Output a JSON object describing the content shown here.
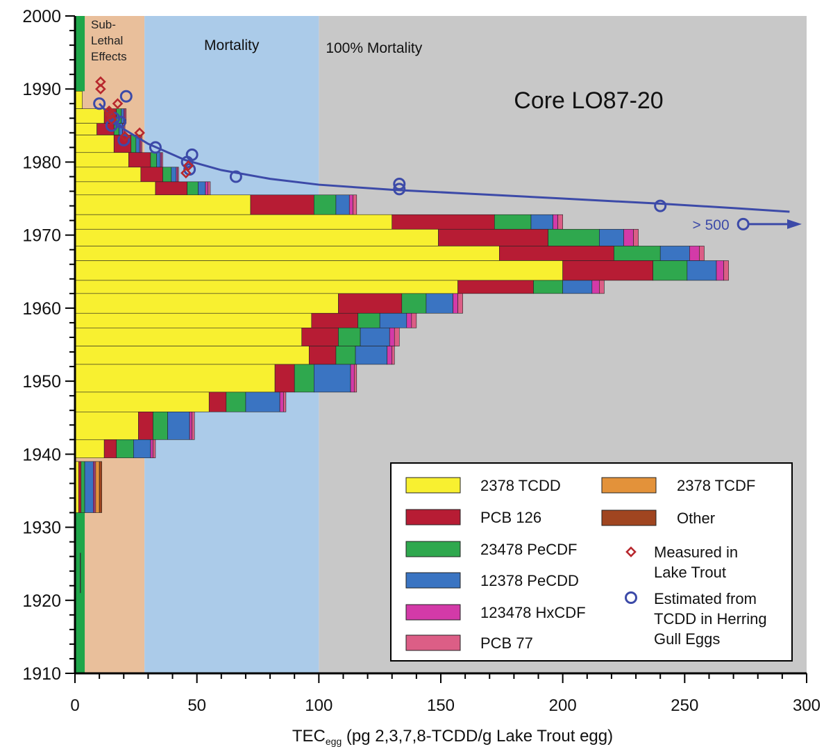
{
  "chart_data": {
    "type": "bar",
    "orientation": "horizontal-stacked",
    "title": "Core LO87-20",
    "xlabel_main": "TEC",
    "xlabel_sub": "egg",
    "xlabel_rest": " (pg 2,3,7,8-TCDD/g Lake Trout egg)",
    "xlim": [
      0,
      300
    ],
    "ylim": [
      1910,
      2000
    ],
    "xticks": [
      0,
      50,
      100,
      150,
      200,
      250,
      300
    ],
    "yticks": [
      1910,
      1920,
      1930,
      1940,
      1950,
      1960,
      1970,
      1980,
      1990,
      2000
    ],
    "xtick_labels": [
      "0",
      "50",
      "100",
      "150",
      "200",
      "250",
      "300"
    ],
    "ytick_labels": [
      "1910",
      "1920",
      "1930",
      "1940",
      "1950",
      "1960",
      "1970",
      "1980",
      "1990",
      "2000"
    ],
    "zones": [
      {
        "label_lines": [
          "Sub-",
          "Lethal",
          "Effects"
        ],
        "from": 0,
        "to": 28.5,
        "color": "#e9bf9b"
      },
      {
        "label_lines": [
          "Mortality"
        ],
        "from": 28.5,
        "to": 100,
        "color": "#abcbe9"
      },
      {
        "label_lines": [
          "100% Mortality"
        ],
        "from": 100,
        "to": 300,
        "color": "#c8c8c8"
      }
    ],
    "series": [
      {
        "name": "2378 TCDD",
        "color": "#f8f030"
      },
      {
        "name": "PCB 126",
        "color": "#b71c34"
      },
      {
        "name": "23478 PeCDF",
        "color": "#2fa84e"
      },
      {
        "name": "12378 PeCDD",
        "color": "#3a74c2"
      },
      {
        "name": "123478 HxCDF",
        "color": "#d33aa8"
      },
      {
        "name": "PCB 77",
        "color": "#dc5e86"
      },
      {
        "name": "2378 TCDF",
        "color": "#e3923a"
      },
      {
        "name": "Other",
        "color": "#a04520"
      }
    ],
    "legend_position": "lower-right",
    "bars": [
      {
        "y0": 1987.3,
        "y1": 1989.7,
        "values": [
          3,
          0,
          0,
          0,
          0,
          0,
          0,
          0
        ]
      },
      {
        "y0": 1985.3,
        "y1": 1987.3,
        "values": [
          12,
          5,
          2,
          1,
          0.5,
          0.5,
          0,
          0
        ]
      },
      {
        "y0": 1983.7,
        "y1": 1985.3,
        "values": [
          9,
          7,
          2,
          1.5,
          0.5,
          0.5,
          0,
          0
        ]
      },
      {
        "y0": 1981.3,
        "y1": 1983.7,
        "values": [
          16,
          7,
          2,
          1.5,
          0.5,
          0.5,
          0,
          0
        ]
      },
      {
        "y0": 1979.3,
        "y1": 1981.3,
        "values": [
          22,
          9,
          2.5,
          1.5,
          0.5,
          0.5,
          0,
          0
        ]
      },
      {
        "y0": 1977.3,
        "y1": 1979.3,
        "values": [
          27,
          9,
          3.5,
          2,
          0.5,
          0.5,
          0,
          0
        ]
      },
      {
        "y0": 1975.5,
        "y1": 1977.3,
        "values": [
          33,
          13,
          4.5,
          3,
          1,
          1,
          0,
          0
        ]
      },
      {
        "y0": 1972.8,
        "y1": 1975.5,
        "values": [
          72,
          26,
          9,
          5.5,
          1.5,
          1.5,
          0,
          0
        ]
      },
      {
        "y0": 1970.8,
        "y1": 1972.8,
        "values": [
          130,
          42,
          15,
          9,
          2,
          2,
          0,
          0
        ]
      },
      {
        "y0": 1968.5,
        "y1": 1970.8,
        "values": [
          149,
          45,
          21,
          10,
          4,
          2,
          0,
          0
        ]
      },
      {
        "y0": 1966.5,
        "y1": 1968.5,
        "values": [
          174,
          47,
          19,
          12,
          4,
          2,
          0,
          0
        ]
      },
      {
        "y0": 1963.8,
        "y1": 1966.5,
        "values": [
          200,
          37,
          14,
          12,
          3,
          2,
          0,
          0
        ]
      },
      {
        "y0": 1962.0,
        "y1": 1963.8,
        "values": [
          157,
          31,
          12,
          12,
          3,
          2,
          0,
          0
        ]
      },
      {
        "y0": 1959.3,
        "y1": 1962.0,
        "values": [
          108,
          26,
          10,
          11,
          2,
          2,
          0,
          0
        ]
      },
      {
        "y0": 1957.3,
        "y1": 1959.3,
        "values": [
          97,
          19,
          9,
          11,
          2,
          2,
          0,
          0
        ]
      },
      {
        "y0": 1954.8,
        "y1": 1957.3,
        "values": [
          93,
          15,
          9,
          12,
          2,
          2,
          0,
          0
        ]
      },
      {
        "y0": 1952.3,
        "y1": 1954.8,
        "values": [
          96,
          11,
          8,
          13,
          2,
          1,
          0,
          0
        ]
      },
      {
        "y0": 1948.5,
        "y1": 1952.3,
        "values": [
          82,
          8,
          8,
          15,
          1.5,
          1,
          0,
          0
        ]
      },
      {
        "y0": 1945.8,
        "y1": 1948.5,
        "values": [
          55,
          7,
          8,
          14,
          1.5,
          1,
          0,
          0
        ]
      },
      {
        "y0": 1942.0,
        "y1": 1945.8,
        "values": [
          26,
          6,
          6,
          9,
          1,
          1,
          0,
          0
        ]
      },
      {
        "y0": 1939.5,
        "y1": 1942.0,
        "values": [
          12,
          5,
          7,
          7,
          1,
          1,
          0,
          0
        ]
      },
      {
        "y0": 1932.0,
        "y1": 1939.0,
        "values": [
          1.5,
          1,
          1.5,
          3.5,
          0.5,
          0.5,
          1.5,
          1
        ]
      }
    ],
    "green_strip": [
      {
        "y0": 1989.7,
        "y1": 2000,
        "value": 4
      },
      {
        "y0": 1910,
        "y1": 1932,
        "value": 4
      }
    ],
    "thin_marks": [
      {
        "y0": 1921.0,
        "y1": 1926.5,
        "x": 2.2
      }
    ],
    "measured_lake_trout": [
      [
        10.5,
        991
      ],
      [
        10.5,
        990
      ],
      [
        17.5,
        988
      ],
      [
        14.5,
        986.5
      ],
      [
        15,
        985.8
      ],
      [
        26.5,
        984
      ],
      [
        20.5,
        983.5
      ],
      [
        45.5,
        978.5
      ],
      [
        46.5,
        979.5
      ],
      [
        14,
        987
      ]
    ],
    "estimated_herring_gull": [
      [
        10,
        988
      ],
      [
        16,
        986
      ],
      [
        21,
        989
      ],
      [
        18.5,
        985.5
      ],
      [
        15,
        985
      ],
      [
        20,
        983
      ],
      [
        33,
        982
      ],
      [
        48,
        981
      ],
      [
        46,
        980
      ],
      [
        47,
        979
      ],
      [
        66,
        978
      ],
      [
        133,
        977
      ],
      [
        133,
        976.3
      ],
      [
        240,
        974
      ],
      [
        274,
        971.5
      ]
    ],
    "trend_curve": [
      [
        10,
        988
      ],
      [
        14,
        986.5
      ],
      [
        20,
        984.5
      ],
      [
        30,
        982.5
      ],
      [
        45,
        980.3
      ],
      [
        60,
        978.9
      ],
      [
        80,
        977.7
      ],
      [
        100,
        976.9
      ],
      [
        130,
        976.2
      ],
      [
        160,
        975.7
      ],
      [
        200,
        975.0
      ],
      [
        240,
        974.3
      ],
      [
        270,
        973.7
      ],
      [
        293,
        973.2
      ]
    ],
    "annotation": "> 500",
    "annotation_point": [
      274,
      971.5
    ],
    "legend_entries": [
      {
        "label_lines": [
          "2378 TCDD"
        ],
        "kind": "bar",
        "color": "#f8f030"
      },
      {
        "label_lines": [
          "PCB 126"
        ],
        "kind": "bar",
        "color": "#b71c34"
      },
      {
        "label_lines": [
          "23478 PeCDF"
        ],
        "kind": "bar",
        "color": "#2fa84e"
      },
      {
        "label_lines": [
          "12378 PeCDD"
        ],
        "kind": "bar",
        "color": "#3a74c2"
      },
      {
        "label_lines": [
          "123478 HxCDF"
        ],
        "kind": "bar",
        "color": "#d33aa8"
      },
      {
        "label_lines": [
          "PCB 77"
        ],
        "kind": "bar",
        "color": "#dc5e86"
      },
      {
        "label_lines": [
          "2378 TCDF"
        ],
        "kind": "bar",
        "color": "#e3923a"
      },
      {
        "label_lines": [
          "Other"
        ],
        "kind": "bar",
        "color": "#a04520"
      },
      {
        "label_lines": [
          "Measured in",
          "Lake Trout"
        ],
        "kind": "marker-red",
        "color": "#b7272d"
      },
      {
        "label_lines": [
          "Estimated from",
          "TCDD in Herring",
          "Gull Eggs"
        ],
        "kind": "marker-blue",
        "color": "#3c4aa8"
      }
    ],
    "colors": {
      "strip_green": "#1fa64a",
      "curve_blue": "#3c4aa8",
      "measured_red": "#b7272d",
      "axis": "#000000",
      "legend_bg": "#ffffff"
    }
  }
}
